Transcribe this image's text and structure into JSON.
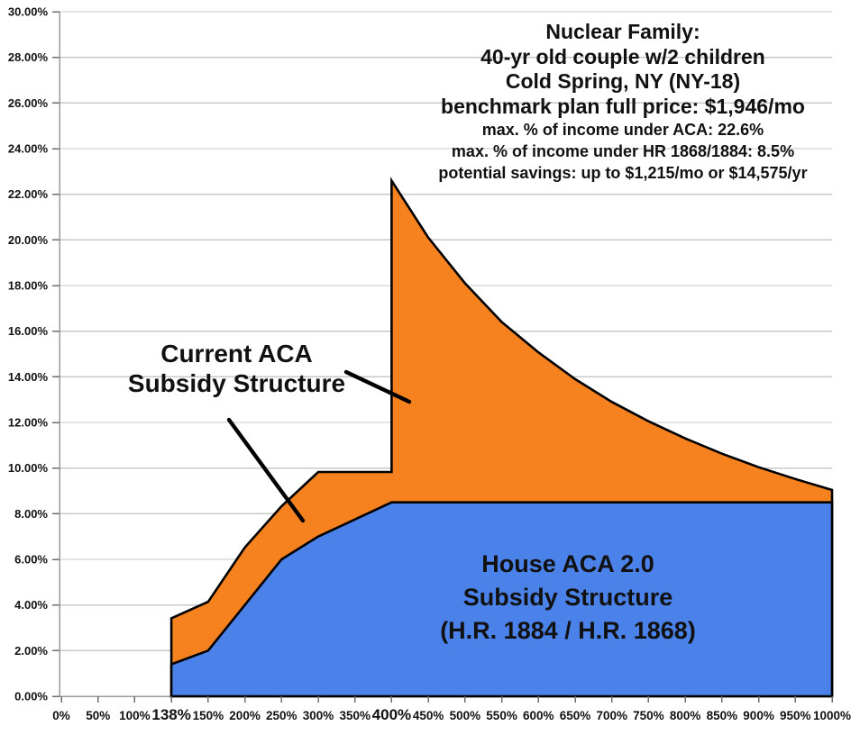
{
  "chart_data": {
    "type": "area",
    "title": "",
    "xlabel": "",
    "ylabel": "",
    "ylim": [
      0,
      30
    ],
    "grid": "horizontal",
    "legend_position": "none (labels drawn inside plot areas)",
    "categories": [
      "0%",
      "50%",
      "100%",
      "138%",
      "150%",
      "200%",
      "250%",
      "300%",
      "350%",
      "400%",
      "450%",
      "500%",
      "550%",
      "600%",
      "650%",
      "700%",
      "750%",
      "800%",
      "850%",
      "900%",
      "950%",
      "1000%"
    ],
    "x_axis": {
      "tick_labels": [
        "0%",
        "50%",
        "100%",
        "138%",
        "150%",
        "200%",
        "250%",
        "300%",
        "350%",
        "400%",
        "450%",
        "500%",
        "550%",
        "600%",
        "650%",
        "700%",
        "750%",
        "800%",
        "850%",
        "900%",
        "950%",
        "1000%"
      ],
      "emphasized_tick_labels": [
        "138%",
        "400%"
      ]
    },
    "y_axis": {
      "min": 0,
      "max": 30,
      "step": 2,
      "tick_labels": [
        "0.00%",
        "2.00%",
        "4.00%",
        "6.00%",
        "8.00%",
        "10.00%",
        "12.00%",
        "14.00%",
        "16.00%",
        "18.00%",
        "20.00%",
        "22.00%",
        "24.00%",
        "26.00%",
        "28.00%",
        "30.00%"
      ]
    },
    "series": [
      {
        "name": "Current ACA Subsidy Structure",
        "color": "#F5821F",
        "points": [
          [
            "138%",
            3.42
          ],
          [
            "150%",
            4.14
          ],
          [
            "200%",
            6.52
          ],
          [
            "250%",
            8.33
          ],
          [
            "300%",
            9.83
          ],
          [
            "350%",
            9.83
          ],
          [
            "400%",
            9.83
          ],
          [
            "400%",
            22.6
          ],
          [
            "450%",
            20.1
          ],
          [
            "500%",
            18.1
          ],
          [
            "550%",
            16.4
          ],
          [
            "600%",
            15.07
          ],
          [
            "650%",
            13.9
          ],
          [
            "700%",
            12.9
          ],
          [
            "750%",
            12.05
          ],
          [
            "800%",
            11.3
          ],
          [
            "850%",
            10.63
          ],
          [
            "900%",
            10.04
          ],
          [
            "950%",
            9.52
          ],
          [
            "1000%",
            9.04
          ]
        ]
      },
      {
        "name": "House ACA 2.0 Subsidy Structure (H.R. 1884 / H.R. 1868)",
        "color": "#4A82EA",
        "points": [
          [
            "138%",
            1.4
          ],
          [
            "150%",
            2.0
          ],
          [
            "200%",
            4.0
          ],
          [
            "250%",
            6.0
          ],
          [
            "300%",
            7.0
          ],
          [
            "350%",
            7.75
          ],
          [
            "400%",
            8.5
          ],
          [
            "450%",
            8.5
          ],
          [
            "500%",
            8.5
          ],
          [
            "550%",
            8.5
          ],
          [
            "600%",
            8.5
          ],
          [
            "650%",
            8.5
          ],
          [
            "700%",
            8.5
          ],
          [
            "750%",
            8.5
          ],
          [
            "800%",
            8.5
          ],
          [
            "850%",
            8.5
          ],
          [
            "900%",
            8.5
          ],
          [
            "950%",
            8.5
          ],
          [
            "1000%",
            8.5
          ]
        ]
      }
    ]
  },
  "annotation": {
    "lines_large": [
      "Nuclear Family:",
      "40-yr old couple w/2 children",
      "Cold Spring, NY (NY-18)",
      "benchmark plan full price: $1,946/mo"
    ],
    "lines_small": [
      "max. % of income under ACA: 22.6%",
      "max. % of income under HR 1868/1884: 8.5%",
      "potential savings: up to $1,215/mo or $14,575/yr"
    ]
  },
  "area_labels": {
    "current_aca": [
      "Current ACA",
      "Subsidy Structure"
    ],
    "house_aca": [
      "House ACA 2.0",
      "Subsidy Structure",
      "(H.R. 1884 / H.R. 1868)"
    ]
  },
  "colors": {
    "orange": "#F5821F",
    "blue": "#4A82EA",
    "gridline": "#C9C9C9",
    "axis": "#9B9B9B",
    "tick": "#6E6E6E",
    "outline": "#000000",
    "text": "#111111"
  }
}
